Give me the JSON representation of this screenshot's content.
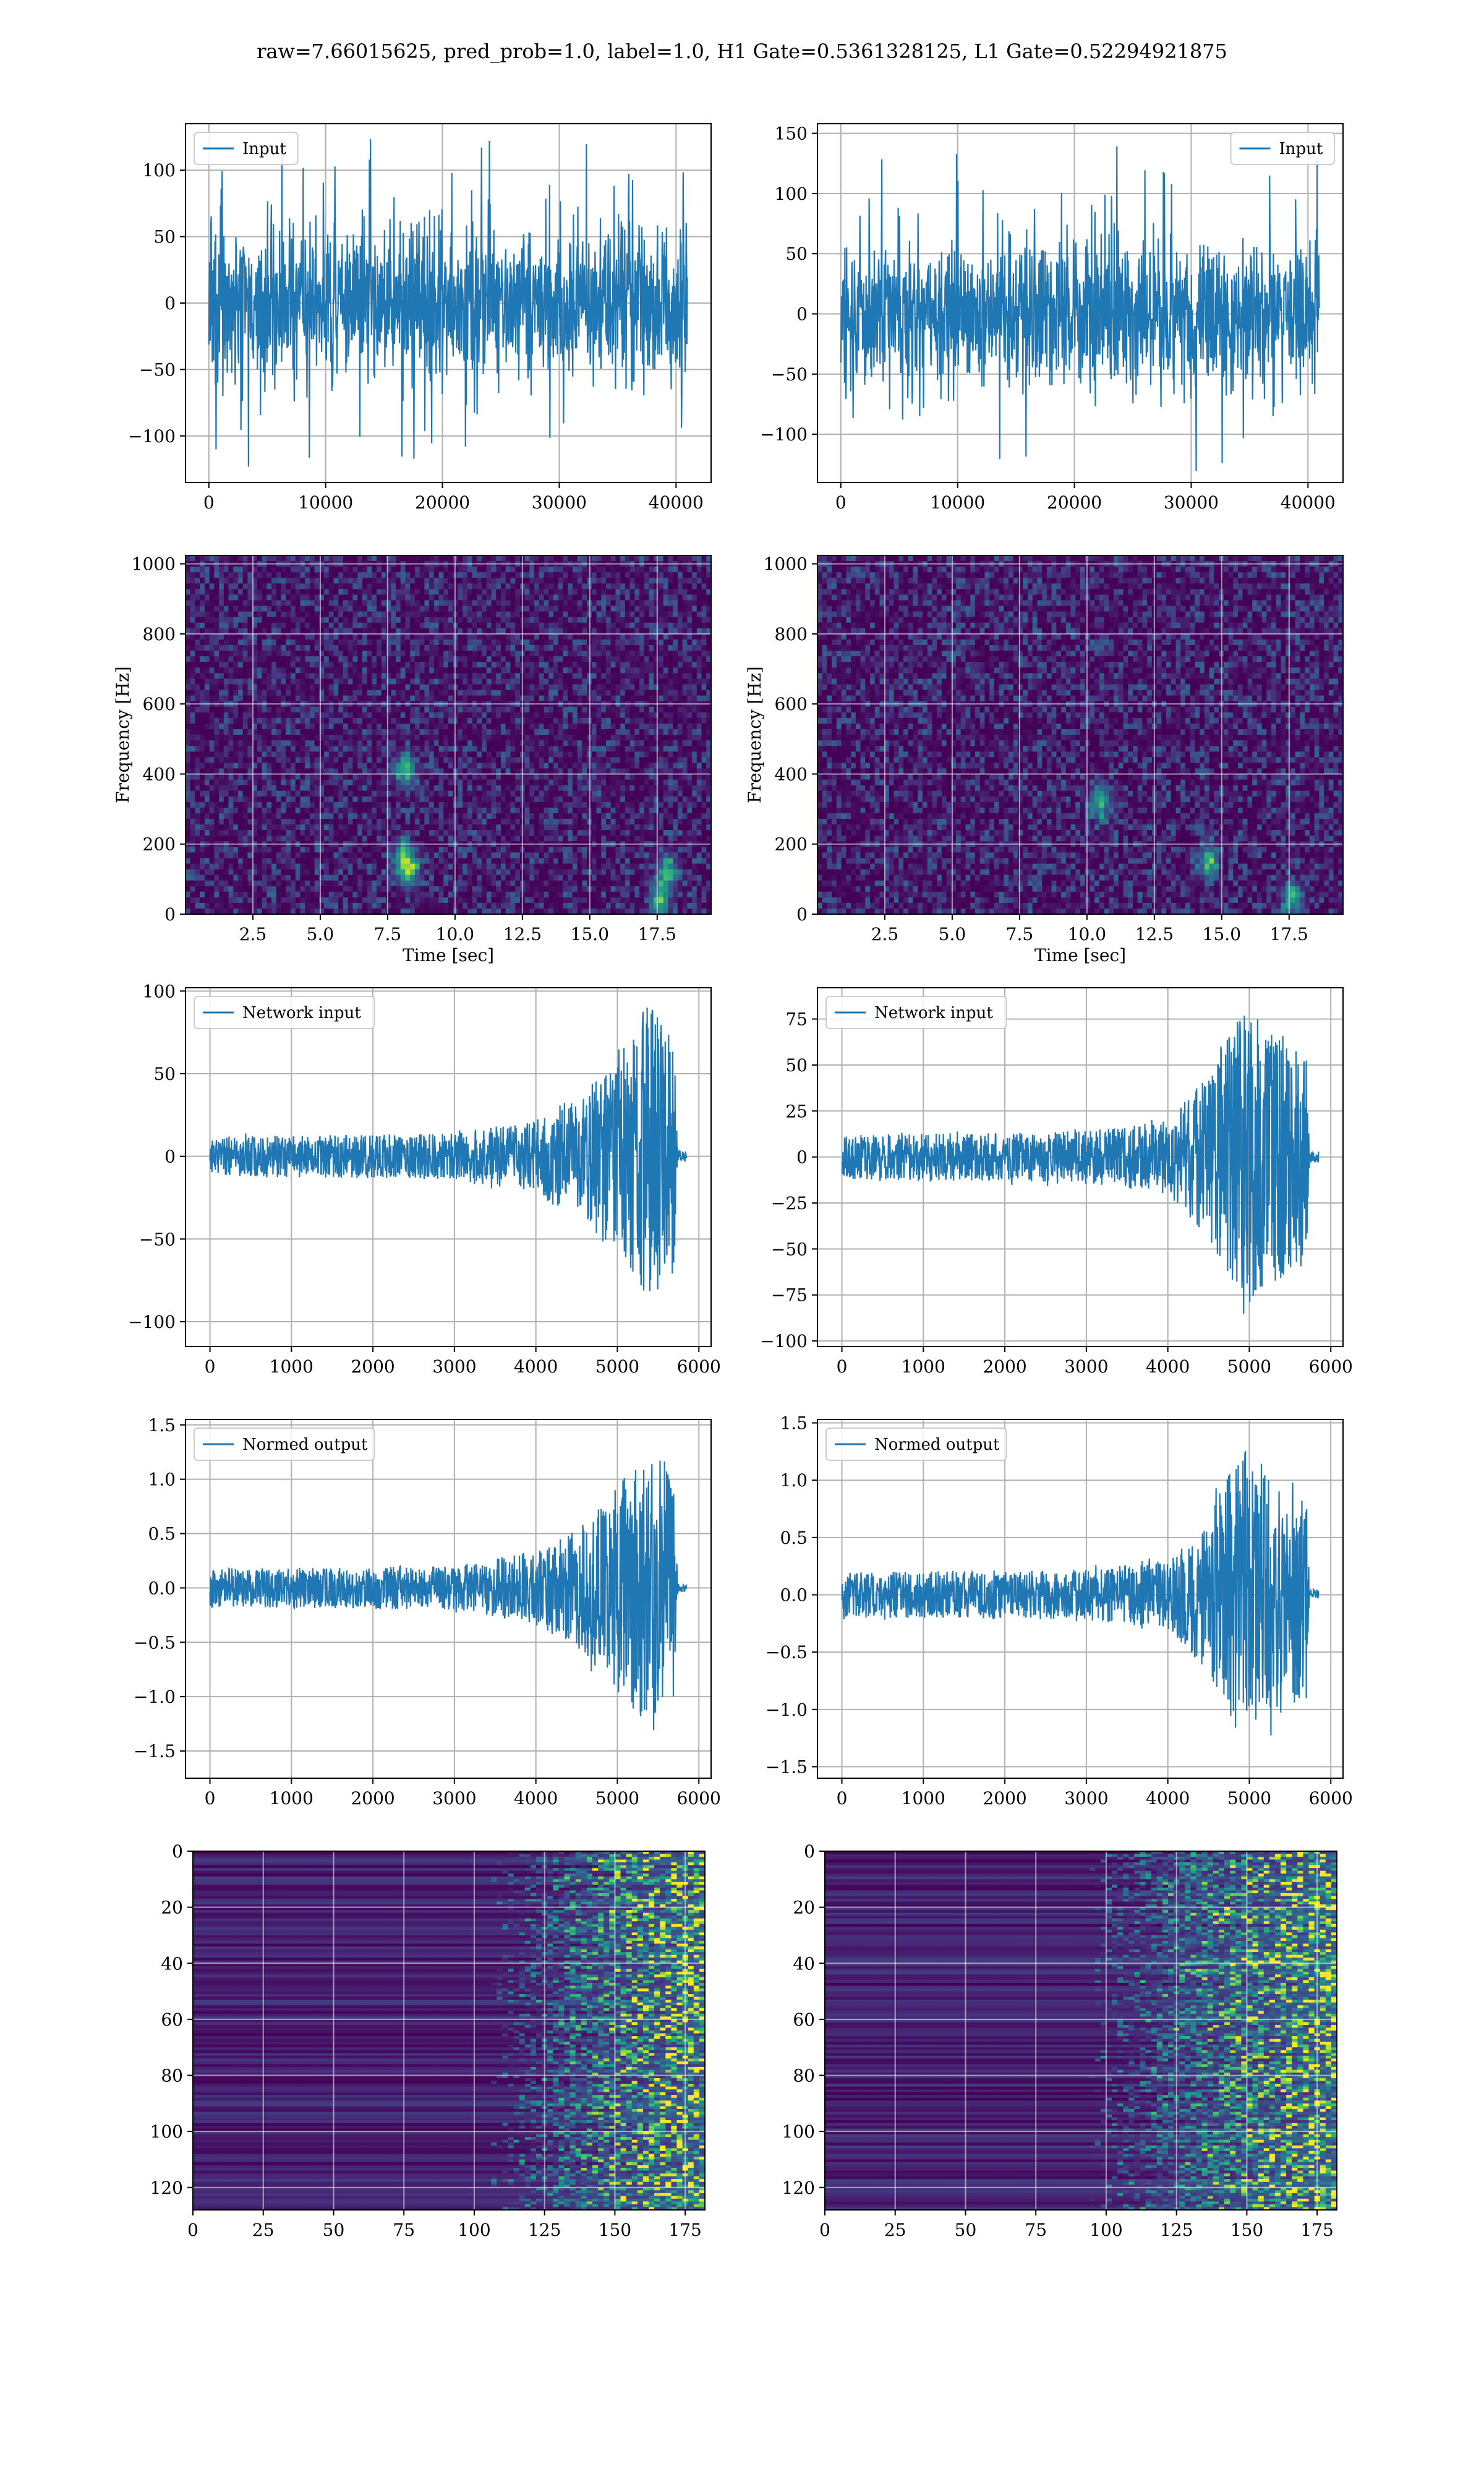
{
  "figure": {
    "suptitle": "raw=7.66015625, pred_prob=1.0, label=1.0, H1 Gate=0.5361328125, L1 Gate=0.52294921875",
    "line_color": "#1f77b4"
  },
  "chart_data": [
    {
      "id": "h1-input",
      "type": "line",
      "series": [
        {
          "name": "Input",
          "color": "#1f77b4"
        }
      ],
      "legend": "upper-left",
      "grid": true,
      "xlim": [
        -2000,
        43000
      ],
      "ylim": [
        -135,
        135
      ],
      "xticks": [
        0,
        10000,
        20000,
        30000,
        40000
      ],
      "xtick_labels": [
        "0",
        "10000",
        "20000",
        "30000",
        "40000"
      ],
      "yticks": [
        -100,
        -50,
        0,
        50,
        100
      ],
      "ytick_labels": [
        "−100",
        "−50",
        "0",
        "50",
        "100"
      ],
      "signal": {
        "x_max": 40960,
        "kind": "noise",
        "typical_amplitude": 60,
        "peak_amplitude": 125
      }
    },
    {
      "id": "l1-input",
      "type": "line",
      "series": [
        {
          "name": "Input",
          "color": "#1f77b4"
        }
      ],
      "legend": "upper-right",
      "grid": true,
      "xlim": [
        -2000,
        43000
      ],
      "ylim": [
        -140,
        158
      ],
      "xticks": [
        0,
        10000,
        20000,
        30000,
        40000
      ],
      "xtick_labels": [
        "0",
        "10000",
        "20000",
        "30000",
        "40000"
      ],
      "yticks": [
        -100,
        -50,
        0,
        50,
        100,
        150
      ],
      "ytick_labels": [
        "−100",
        "−50",
        "0",
        "50",
        "100",
        "150"
      ],
      "signal": {
        "x_max": 40960,
        "kind": "noise",
        "typical_amplitude": 60,
        "peak_amplitude": 140
      }
    },
    {
      "id": "h1-spectrogram",
      "type": "heatmap",
      "grid": true,
      "xlabel": "Time [sec]",
      "ylabel": "Frequency [Hz]",
      "xlim": [
        0,
        19.5
      ],
      "ylim": [
        0,
        1024
      ],
      "xticks": [
        2.5,
        5.0,
        7.5,
        10.0,
        12.5,
        15.0,
        17.5
      ],
      "xtick_labels": [
        "2.5",
        "5.0",
        "7.5",
        "10.0",
        "12.5",
        "15.0",
        "17.5"
      ],
      "yticks": [
        0,
        200,
        400,
        600,
        800,
        1000
      ],
      "ytick_labels": [
        "0",
        "200",
        "400",
        "600",
        "800",
        "1000"
      ],
      "hotspots": [
        [
          8.2,
          410
        ],
        [
          8.1,
          160
        ],
        [
          8.3,
          120
        ],
        [
          17.6,
          40
        ],
        [
          17.9,
          120
        ]
      ]
    },
    {
      "id": "l1-spectrogram",
      "type": "heatmap",
      "grid": true,
      "xlabel": "Time [sec]",
      "ylabel": "Frequency [Hz]",
      "xlim": [
        0,
        19.5
      ],
      "ylim": [
        0,
        1024
      ],
      "xticks": [
        2.5,
        5.0,
        7.5,
        10.0,
        12.5,
        15.0,
        17.5
      ],
      "xtick_labels": [
        "2.5",
        "5.0",
        "7.5",
        "10.0",
        "12.5",
        "15.0",
        "17.5"
      ],
      "yticks": [
        0,
        200,
        400,
        600,
        800,
        1000
      ],
      "ytick_labels": [
        "0",
        "200",
        "400",
        "600",
        "800",
        "1000"
      ],
      "hotspots": [
        [
          17.6,
          40
        ],
        [
          10.5,
          320
        ],
        [
          14.5,
          150
        ]
      ]
    },
    {
      "id": "h1-network-input",
      "type": "line",
      "series": [
        {
          "name": "Network input",
          "color": "#1f77b4"
        }
      ],
      "legend": "upper-left",
      "grid": true,
      "xlim": [
        -300,
        6150
      ],
      "ylim": [
        -115,
        102
      ],
      "xticks": [
        0,
        1000,
        2000,
        3000,
        4000,
        5000,
        6000
      ],
      "xtick_labels": [
        "0",
        "1000",
        "2000",
        "3000",
        "4000",
        "5000",
        "6000"
      ],
      "yticks": [
        -100,
        -50,
        0,
        50,
        100
      ],
      "ytick_labels": [
        "−100",
        "−50",
        "0",
        "50",
        "100"
      ],
      "signal": {
        "x_max": 5850,
        "kind": "chirp",
        "envelope": [
          [
            0,
            12
          ],
          [
            3000,
            14
          ],
          [
            4000,
            22
          ],
          [
            4600,
            40
          ],
          [
            5100,
            70
          ],
          [
            5400,
            95
          ],
          [
            5700,
            70
          ],
          [
            5740,
            3
          ],
          [
            5850,
            3
          ]
        ]
      }
    },
    {
      "id": "l1-network-input",
      "type": "line",
      "series": [
        {
          "name": "Network input",
          "color": "#1f77b4"
        }
      ],
      "legend": "upper-left",
      "grid": true,
      "xlim": [
        -300,
        6150
      ],
      "ylim": [
        -103,
        92
      ],
      "xticks": [
        0,
        1000,
        2000,
        3000,
        4000,
        5000,
        6000
      ],
      "xtick_labels": [
        "0",
        "1000",
        "2000",
        "3000",
        "4000",
        "5000",
        "6000"
      ],
      "yticks": [
        -100,
        -75,
        -50,
        -25,
        0,
        25,
        50,
        75
      ],
      "ytick_labels": [
        "−100",
        "−75",
        "−50",
        "−25",
        "0",
        "25",
        "50",
        "75"
      ],
      "signal": {
        "x_max": 5850,
        "kind": "chirp",
        "envelope": [
          [
            0,
            12
          ],
          [
            3000,
            14
          ],
          [
            4000,
            20
          ],
          [
            4500,
            45
          ],
          [
            4900,
            80
          ],
          [
            5300,
            70
          ],
          [
            5700,
            55
          ],
          [
            5740,
            3
          ],
          [
            5850,
            3
          ]
        ]
      }
    },
    {
      "id": "h1-normed-output",
      "type": "line",
      "series": [
        {
          "name": "Normed output",
          "color": "#1f77b4"
        }
      ],
      "legend": "upper-left",
      "grid": true,
      "xlim": [
        -300,
        6150
      ],
      "ylim": [
        -1.75,
        1.55
      ],
      "xticks": [
        0,
        1000,
        2000,
        3000,
        4000,
        5000,
        6000
      ],
      "xtick_labels": [
        "0",
        "1000",
        "2000",
        "3000",
        "4000",
        "5000",
        "6000"
      ],
      "yticks": [
        -1.5,
        -1.0,
        -0.5,
        0.0,
        0.5,
        1.0,
        1.5
      ],
      "ytick_labels": [
        "−1.5",
        "−1.0",
        "−0.5",
        "0.0",
        "0.5",
        "1.0",
        "1.5"
      ],
      "signal": {
        "x_max": 5850,
        "kind": "chirp",
        "envelope": [
          [
            0,
            0.18
          ],
          [
            3000,
            0.2
          ],
          [
            4000,
            0.35
          ],
          [
            4600,
            0.6
          ],
          [
            5100,
            1.05
          ],
          [
            5400,
            1.4
          ],
          [
            5700,
            1.0
          ],
          [
            5740,
            0.04
          ],
          [
            5850,
            0.04
          ]
        ]
      }
    },
    {
      "id": "l1-normed-output",
      "type": "line",
      "series": [
        {
          "name": "Normed output",
          "color": "#1f77b4"
        }
      ],
      "legend": "upper-left",
      "grid": true,
      "xlim": [
        -300,
        6150
      ],
      "ylim": [
        -1.6,
        1.53
      ],
      "xticks": [
        0,
        1000,
        2000,
        3000,
        4000,
        5000,
        6000
      ],
      "xtick_labels": [
        "0",
        "1000",
        "2000",
        "3000",
        "4000",
        "5000",
        "6000"
      ],
      "yticks": [
        -1.5,
        -1.0,
        -0.5,
        0.0,
        0.5,
        1.0,
        1.5
      ],
      "ytick_labels": [
        "−1.5",
        "−1.0",
        "−0.5",
        "0.0",
        "0.5",
        "1.0",
        "1.5"
      ],
      "signal": {
        "x_max": 5850,
        "kind": "chirp",
        "envelope": [
          [
            0,
            0.2
          ],
          [
            3000,
            0.22
          ],
          [
            4000,
            0.3
          ],
          [
            4500,
            0.7
          ],
          [
            4900,
            1.3
          ],
          [
            5300,
            1.1
          ],
          [
            5700,
            0.9
          ],
          [
            5740,
            0.05
          ],
          [
            5850,
            0.05
          ]
        ]
      }
    },
    {
      "id": "h1-feature-map",
      "type": "heatmap",
      "grid": true,
      "xlim": [
        0,
        182
      ],
      "ylim": [
        128,
        0
      ],
      "xticks": [
        0,
        25,
        50,
        75,
        100,
        125,
        150,
        175
      ],
      "xtick_labels": [
        "0",
        "25",
        "50",
        "75",
        "100",
        "125",
        "150",
        "175"
      ],
      "yticks": [
        0,
        20,
        40,
        60,
        80,
        100,
        120
      ],
      "ytick_labels": [
        "0",
        "20",
        "40",
        "60",
        "80",
        "100",
        "120"
      ],
      "onset_column": 120
    },
    {
      "id": "l1-feature-map",
      "type": "heatmap",
      "grid": true,
      "xlim": [
        0,
        182
      ],
      "ylim": [
        128,
        0
      ],
      "xticks": [
        0,
        25,
        50,
        75,
        100,
        125,
        150,
        175
      ],
      "xtick_labels": [
        "0",
        "25",
        "50",
        "75",
        "100",
        "125",
        "150",
        "175"
      ],
      "yticks": [
        0,
        20,
        40,
        60,
        80,
        100,
        120
      ],
      "ytick_labels": [
        "0",
        "20",
        "40",
        "60",
        "80",
        "100",
        "120"
      ],
      "onset_column": 108
    }
  ]
}
